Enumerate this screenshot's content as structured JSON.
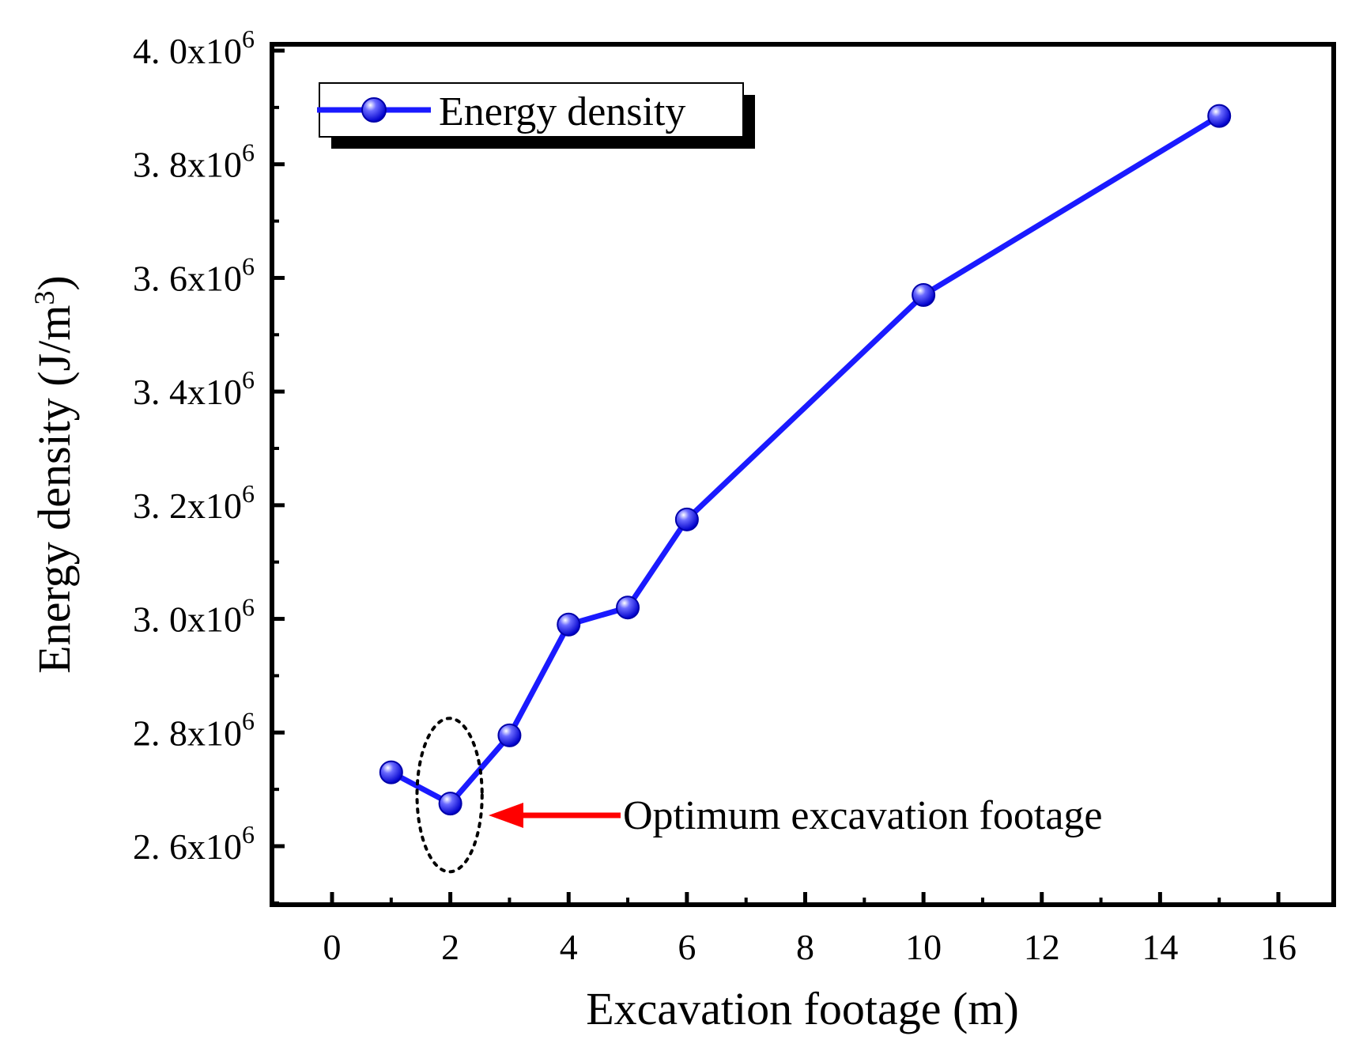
{
  "chart_data": {
    "type": "line",
    "title": "",
    "xlabel": "Excavation footage (m)",
    "ylabel": "Energy density (J/m",
    "ylabel_sup": "3",
    "ylabel_close": ")",
    "xlim": [
      -1,
      17
    ],
    "ylim": [
      2.5,
      4.0
    ],
    "xticks": [
      0,
      2,
      4,
      6,
      8,
      10,
      12,
      14,
      16
    ],
    "xtick_labels": [
      "0",
      "2",
      "4",
      "6",
      "8",
      "10",
      "12",
      "14",
      "16"
    ],
    "yticks": [
      2.6,
      2.8,
      3.0,
      3.2,
      3.4,
      3.6,
      3.8,
      4.0
    ],
    "ytick_labels": [
      {
        "mantissa": "2. 6x10",
        "exp": "6"
      },
      {
        "mantissa": "2. 8x10",
        "exp": "6"
      },
      {
        "mantissa": "3. 0x10",
        "exp": "6"
      },
      {
        "mantissa": "3. 2x10",
        "exp": "6"
      },
      {
        "mantissa": "3. 4x10",
        "exp": "6"
      },
      {
        "mantissa": "3. 6x10",
        "exp": "6"
      },
      {
        "mantissa": "3. 8x10",
        "exp": "6"
      },
      {
        "mantissa": "4. 0x10",
        "exp": "6"
      }
    ],
    "y_scale_note": "values in units of 1e6 J/m3",
    "series": [
      {
        "name": "Energy density",
        "color": "#1a1aff",
        "x": [
          1,
          2,
          3,
          4,
          5,
          6,
          10,
          15
        ],
        "y": [
          2.73,
          2.675,
          2.795,
          2.99,
          3.02,
          3.175,
          3.57,
          3.885
        ]
      }
    ],
    "legend": {
      "position": "top-left",
      "entries": [
        "Energy density"
      ]
    },
    "annotation": {
      "text": "Optimum excavation footage",
      "target_x": 2,
      "target_y": 2.69,
      "arrow_color": "#ff0000",
      "ellipse_center": [
        2,
        2.69
      ],
      "ellipse_radius_data": [
        0.55,
        0.135
      ]
    }
  }
}
